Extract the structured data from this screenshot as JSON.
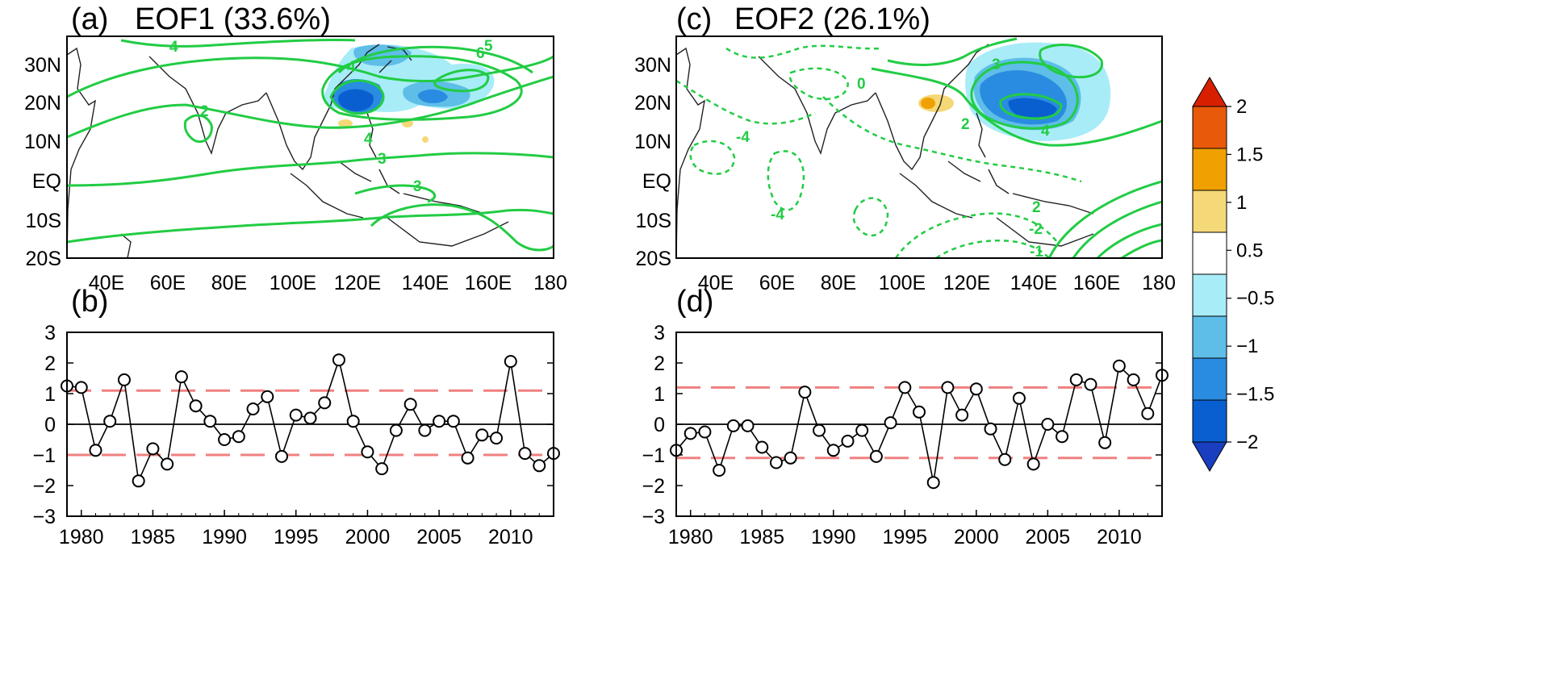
{
  "colors": {
    "contour": "#22cc44",
    "threshold": "#f08080",
    "marker": "#000000"
  },
  "colorbar": {
    "labels": [
      "2",
      "1.5",
      "1",
      "0.5",
      "−0.5",
      "−1",
      "−1.5",
      "−2"
    ],
    "colors": [
      "#d62000",
      "#e85a0a",
      "#f0a000",
      "#f5d878",
      "#ffffff",
      "#a8ecf8",
      "#5ebee8",
      "#2a8ce0",
      "#0a5fd0",
      "#1a3ec0"
    ]
  },
  "maps": [
    {
      "panel_label": "(a)",
      "title": "EOF1 (33.6%)",
      "lat_ticks": [
        "30N",
        "20N",
        "10N",
        "EQ",
        "10S",
        "20S"
      ],
      "lon_ticks": [
        "40E",
        "60E",
        "80E",
        "100E",
        "120E",
        "140E",
        "160E",
        "180"
      ],
      "contour_labels": [
        "4",
        "2",
        "4",
        "4",
        "3",
        "3",
        "6",
        "5"
      ]
    },
    {
      "panel_label": "(c)",
      "title": "EOF2 (26.1%)",
      "lat_ticks": [
        "30N",
        "20N",
        "10N",
        "EQ",
        "10S",
        "20S"
      ],
      "lon_ticks": [
        "40E",
        "60E",
        "80E",
        "100E",
        "120E",
        "140E",
        "160E",
        "180"
      ],
      "contour_labels": [
        "3",
        "0",
        "2",
        "4",
        "-4",
        "-4",
        "2",
        "-2",
        "-1"
      ]
    }
  ],
  "chart_data": [
    {
      "type": "line",
      "panel_label": "(b)",
      "title": "",
      "xlabel": "",
      "ylabel": "",
      "x": [
        1979,
        1980,
        1981,
        1982,
        1983,
        1984,
        1985,
        1986,
        1987,
        1988,
        1989,
        1990,
        1991,
        1992,
        1993,
        1994,
        1995,
        1996,
        1997,
        1998,
        1999,
        2000,
        2001,
        2002,
        2003,
        2004,
        2005,
        2006,
        2007,
        2008,
        2009,
        2010,
        2011,
        2012,
        2013
      ],
      "values": [
        1.25,
        1.2,
        -0.85,
        0.1,
        1.45,
        -1.85,
        -0.8,
        -1.3,
        1.55,
        0.6,
        0.1,
        -0.5,
        -0.4,
        0.5,
        0.9,
        -1.05,
        0.3,
        0.2,
        0.7,
        2.1,
        0.1,
        -0.9,
        -1.45,
        -0.2,
        0.65,
        -0.2,
        0.1,
        0.1,
        -1.1,
        -0.35,
        -0.45,
        2.05,
        -0.95,
        -1.35,
        -0.95
      ],
      "thresholds": [
        1.1,
        -1.0
      ],
      "xlim": [
        1979,
        2013
      ],
      "ylim": [
        -3,
        3
      ],
      "x_ticks": [
        "1980",
        "1985",
        "1990",
        "1995",
        "2000",
        "2005",
        "2010"
      ],
      "y_ticks": [
        "3",
        "2",
        "1",
        "0",
        "−1",
        "−2",
        "−3"
      ]
    },
    {
      "type": "line",
      "panel_label": "(d)",
      "title": "",
      "xlabel": "",
      "ylabel": "",
      "x": [
        1979,
        1980,
        1981,
        1982,
        1983,
        1984,
        1985,
        1986,
        1987,
        1988,
        1989,
        1990,
        1991,
        1992,
        1993,
        1994,
        1995,
        1996,
        1997,
        1998,
        1999,
        2000,
        2001,
        2002,
        2003,
        2004,
        2005,
        2006,
        2007,
        2008,
        2009,
        2010,
        2011,
        2012,
        2013
      ],
      "values": [
        -0.85,
        -0.3,
        -0.25,
        -1.5,
        -0.05,
        -0.05,
        -0.75,
        -1.25,
        -1.1,
        1.05,
        -0.2,
        -0.85,
        -0.55,
        -0.2,
        -1.05,
        0.05,
        1.2,
        0.4,
        -1.9,
        1.2,
        0.3,
        1.15,
        -0.15,
        -1.15,
        0.85,
        -1.3,
        0.0,
        -0.4,
        1.45,
        1.3,
        -0.6,
        1.9,
        1.45,
        0.35,
        1.6
      ],
      "thresholds": [
        1.2,
        -1.1
      ],
      "xlim": [
        1979,
        2013
      ],
      "ylim": [
        -3,
        3
      ],
      "x_ticks": [
        "1980",
        "1985",
        "1990",
        "1995",
        "2000",
        "2005",
        "2010"
      ],
      "y_ticks": [
        "3",
        "2",
        "1",
        "0",
        "−1",
        "−2",
        "−3"
      ]
    }
  ]
}
